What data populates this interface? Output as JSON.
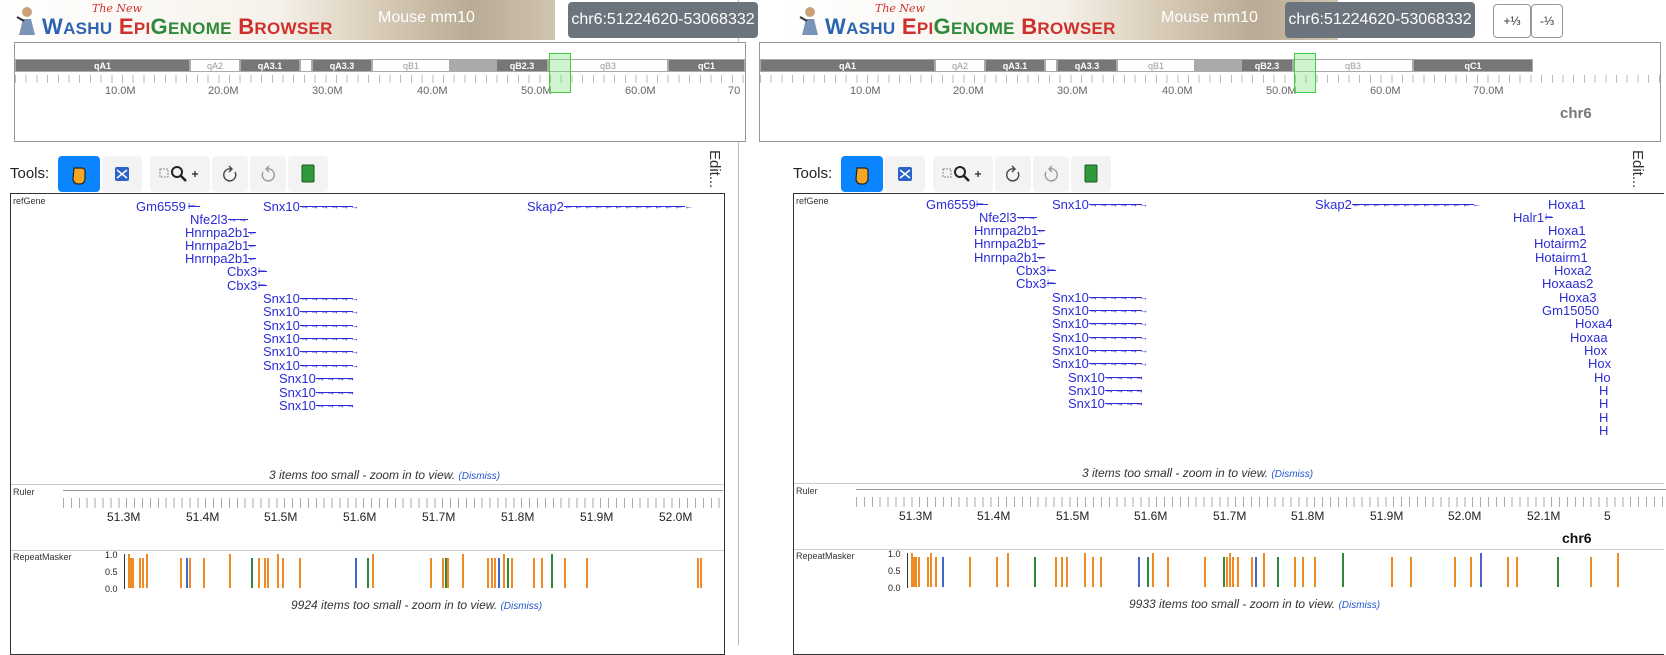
{
  "app": {
    "logo_new": "The New",
    "logo_w": "W",
    "logo_ashu": "ASHU",
    "logo_e": "E",
    "logo_pi": "PI",
    "logo_g": "G",
    "logo_enome": "ENOME",
    "logo_b": "B",
    "logo_rowser": "ROWSER"
  },
  "left": {
    "genome": "Mouse mm10",
    "locus": "chr6:51224620-53068332",
    "tools_label": "Tools:",
    "edit_label": "Edit...",
    "bands": [
      "qA1",
      "qA2",
      "qA3.1",
      "qA3.3",
      "qB1",
      "qB2.3",
      "qB3",
      "qC1"
    ],
    "chrom_ticks": [
      "10.0M",
      "20.0M",
      "30.0M",
      "40.0M",
      "50.0M",
      "60.0M",
      "70"
    ],
    "track_refgene": "refGene",
    "track_ruler": "Ruler",
    "track_repeat": "RepeatMasker",
    "genes": [
      "Gm6559",
      "Snx10",
      "Skap2",
      "Nfe2l3",
      "Hnrnpa2b1",
      "Hnrnpa2b1",
      "Hnrnpa2b1",
      "Cbx3",
      "Cbx3",
      "Snx10",
      "Snx10",
      "Snx10",
      "Snx10",
      "Snx10",
      "Snx10",
      "Snx10",
      "Snx10",
      "Snx10"
    ],
    "small_note": "3 items too small - zoom in to view.",
    "dismiss": "(Dismiss)",
    "ruler_ticks": [
      "51.3M",
      "51.4M",
      "51.5M",
      "51.6M",
      "51.7M",
      "51.8M",
      "51.9M",
      "52.0M"
    ],
    "y_ticks": [
      "1.0",
      "0.5",
      "0.0"
    ],
    "repeat_note": "9924 items too small - zoom in to view.",
    "repeat_dismiss": "(Dismiss)"
  },
  "right": {
    "genome": "Mouse mm10",
    "locus": "chr6:51224620-53068332",
    "zoom_in": "+⅓",
    "zoom_out": "-⅓",
    "chrom_name": "chr6",
    "tools_label": "Tools:",
    "edit_label": "Edit...",
    "bands": [
      "qA1",
      "qA2",
      "qA3.1",
      "qA3.3",
      "qB1",
      "qB2.3",
      "qB3",
      "qC1"
    ],
    "chrom_ticks": [
      "10.0M",
      "20.0M",
      "30.0M",
      "40.0M",
      "50.0M",
      "60.0M",
      "70.0M"
    ],
    "track_refgene": "refGene",
    "track_ruler": "Ruler",
    "track_repeat": "RepeatMasker",
    "genes": [
      "Gm6559",
      "Snx10",
      "Skap2",
      "Nfe2l3",
      "Hnrnpa2b1",
      "Hnrnpa2b1",
      "Hnrnpa2b1",
      "Cbx3",
      "Cbx3",
      "Snx10",
      "Snx10",
      "Snx10",
      "Snx10",
      "Snx10",
      "Snx10",
      "Snx10",
      "Snx10",
      "Snx10"
    ],
    "hox_genes": [
      "Hoxa1",
      "Halr1",
      "Hoxa1",
      "Hotairm2",
      "Hotairm1",
      "Hoxa2",
      "Hoxaas2",
      "Hoxa3",
      "Gm15050",
      "Hoxa4",
      "Hoxaa",
      "Hox",
      "Hox",
      "Ho",
      "H",
      "H",
      "H",
      "H"
    ],
    "small_note": "3 items too small - zoom in to view.",
    "dismiss": "(Dismiss)",
    "ruler_ticks": [
      "51.3M",
      "51.4M",
      "51.5M",
      "51.6M",
      "51.7M",
      "51.8M",
      "51.9M",
      "52.0M",
      "52.1M",
      "5"
    ],
    "ruler_chr": "chr6",
    "y_ticks": [
      "1.0",
      "0.5",
      "0.0"
    ],
    "repeat_note": "9933 items too small - zoom in to view.",
    "repeat_dismiss": "(Dismiss)"
  },
  "colors": {
    "gene": "#2c2cd8",
    "repeat_orange": "#f08a24",
    "repeat_green": "#2e8a3a",
    "repeat_blue": "#4466cc",
    "tool_active": "#0a84ff"
  }
}
